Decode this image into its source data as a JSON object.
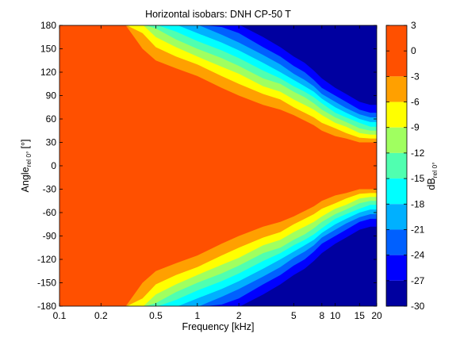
{
  "chart_data": {
    "type": "heatmap",
    "title": "Horizontal isobars: DNH  CP-50 T",
    "xlabel": "Frequency [kHz]",
    "ylabel_main": "Angle",
    "ylabel_sub": "rel 0°",
    "ylabel_unit": "[°]",
    "x_scale": "log",
    "xlim": [
      0.1,
      20
    ],
    "ylim": [
      -180,
      180
    ],
    "grid": false,
    "x_ticks": [
      {
        "value": 0.1,
        "label": "0.1"
      },
      {
        "value": 0.2,
        "label": "0.2"
      },
      {
        "value": 0.5,
        "label": "0.5"
      },
      {
        "value": 1,
        "label": "1"
      },
      {
        "value": 2,
        "label": "2"
      },
      {
        "value": 5,
        "label": "5"
      },
      {
        "value": 8,
        "label": "8"
      },
      {
        "value": 10,
        "label": "10"
      },
      {
        "value": 15,
        "label": "15"
      },
      {
        "value": 20,
        "label": "20"
      }
    ],
    "y_ticks": [
      180,
      150,
      120,
      90,
      60,
      30,
      0,
      -30,
      -60,
      -90,
      -120,
      -150,
      -180
    ],
    "colorbar": {
      "label_main": "dB",
      "label_sub": "rel 0°",
      "ticks": [
        3,
        0,
        -3,
        -6,
        -9,
        -12,
        -15,
        -18,
        -21,
        -24,
        -27,
        -30
      ],
      "levels": [
        {
          "from": -3,
          "to": 3,
          "color": "#ff5000"
        },
        {
          "from": -6,
          "to": -3,
          "color": "#ffa000"
        },
        {
          "from": -9,
          "to": -6,
          "color": "#ffff00"
        },
        {
          "from": -12,
          "to": -9,
          "color": "#a0ff60"
        },
        {
          "from": -15,
          "to": -12,
          "color": "#50ffb0"
        },
        {
          "from": -18,
          "to": -15,
          "color": "#00ffff"
        },
        {
          "from": -21,
          "to": -18,
          "color": "#00b0ff"
        },
        {
          "from": -24,
          "to": -21,
          "color": "#0060ff"
        },
        {
          "from": -27,
          "to": -24,
          "color": "#0000ff"
        },
        {
          "from": -30,
          "to": -27,
          "color": "#0000a0"
        }
      ]
    },
    "contour_boundaries_deg": {
      "note_levels": "angle (deg, symmetric about 0) at which each level begins, per frequency",
      "frequencies_khz": [
        0.1,
        0.2,
        0.3,
        0.4,
        0.5,
        0.7,
        1,
        1.5,
        2,
        3,
        4,
        5,
        6,
        7,
        8,
        10,
        12,
        15,
        18,
        20
      ],
      "edges": [
        {
          "level": -3,
          "angles": [
            181,
            181,
            181,
            150,
            135,
            125,
            115,
            100,
            90,
            78,
            72,
            65,
            58,
            52,
            45,
            38,
            35,
            30,
            30,
            30
          ]
        },
        {
          "level": -6,
          "angles": [
            181,
            181,
            181,
            170,
            152,
            140,
            130,
            115,
            105,
            92,
            85,
            75,
            68,
            62,
            55,
            48,
            42,
            36,
            35,
            35
          ]
        },
        {
          "level": -9,
          "angles": [
            181,
            181,
            181,
            181,
            165,
            152,
            140,
            127,
            118,
            102,
            95,
            85,
            78,
            72,
            65,
            55,
            50,
            42,
            40,
            40
          ]
        },
        {
          "level": -12,
          "angles": [
            181,
            181,
            181,
            181,
            176,
            162,
            150,
            138,
            128,
            112,
            105,
            95,
            88,
            80,
            72,
            62,
            56,
            48,
            45,
            45
          ]
        },
        {
          "level": -15,
          "angles": [
            181,
            181,
            181,
            181,
            181,
            172,
            160,
            148,
            138,
            122,
            112,
            102,
            95,
            88,
            80,
            68,
            62,
            55,
            50,
            50
          ]
        },
        {
          "level": -18,
          "angles": [
            181,
            181,
            181,
            181,
            181,
            181,
            170,
            158,
            148,
            132,
            120,
            110,
            102,
            95,
            86,
            75,
            68,
            60,
            56,
            56
          ]
        },
        {
          "level": -21,
          "angles": [
            181,
            181,
            181,
            181,
            181,
            181,
            181,
            168,
            158,
            142,
            130,
            118,
            110,
            102,
            92,
            82,
            74,
            66,
            62,
            62
          ]
        },
        {
          "level": -24,
          "angles": [
            181,
            181,
            181,
            181,
            181,
            181,
            181,
            178,
            170,
            152,
            140,
            128,
            120,
            110,
            100,
            90,
            82,
            72,
            68,
            68
          ]
        },
        {
          "level": -27,
          "angles": [
            181,
            181,
            181,
            181,
            181,
            181,
            181,
            181,
            181,
            165,
            152,
            140,
            132,
            122,
            112,
            100,
            92,
            82,
            78,
            78
          ]
        }
      ]
    }
  }
}
